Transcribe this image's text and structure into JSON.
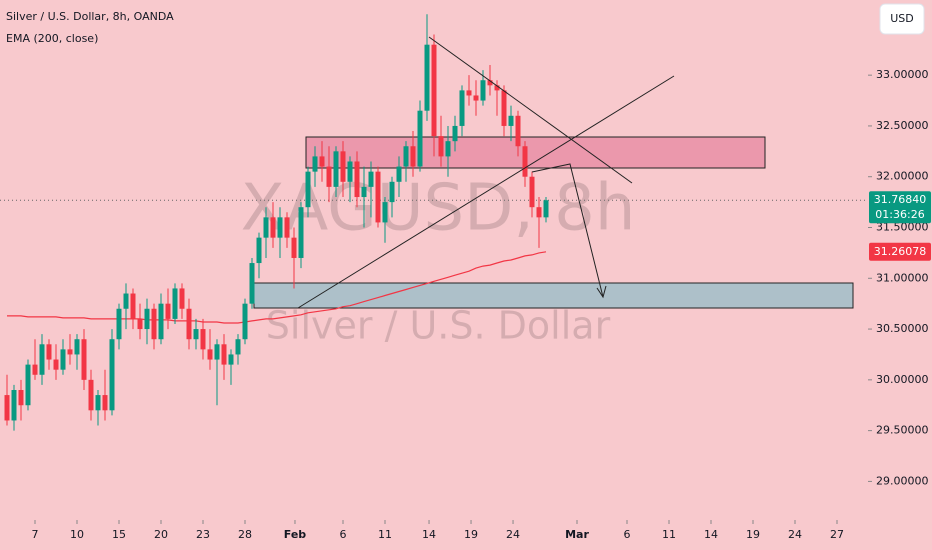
{
  "chart_data": {
    "type": "candlestick",
    "title": "Silver / U.S. Dollar, 8h, OANDA",
    "currency": "USD",
    "watermark": "XAGUSD, 8h",
    "watermark_subtitle": "Silver / U.S. Dollar",
    "up_color": "#089981",
    "down_color": "#f23645",
    "ohlc": [
      [
        29.85,
        30.05,
        29.55,
        29.6
      ],
      [
        29.6,
        29.95,
        29.5,
        29.9
      ],
      [
        29.9,
        30.0,
        29.6,
        29.75
      ],
      [
        29.75,
        30.2,
        29.7,
        30.15
      ],
      [
        30.15,
        30.4,
        30.0,
        30.05
      ],
      [
        30.05,
        30.45,
        29.95,
        30.35
      ],
      [
        30.35,
        30.4,
        30.1,
        30.2
      ],
      [
        30.2,
        30.35,
        30.0,
        30.1
      ],
      [
        30.1,
        30.4,
        30.05,
        30.3
      ],
      [
        30.3,
        30.45,
        30.15,
        30.25
      ],
      [
        30.25,
        30.45,
        30.1,
        30.4
      ],
      [
        30.4,
        30.5,
        29.9,
        30.0
      ],
      [
        30.0,
        30.1,
        29.6,
        29.7
      ],
      [
        29.7,
        29.9,
        29.55,
        29.85
      ],
      [
        29.85,
        30.1,
        29.6,
        29.7
      ],
      [
        29.7,
        30.5,
        29.65,
        30.4
      ],
      [
        30.4,
        30.75,
        30.3,
        30.7
      ],
      [
        30.7,
        30.95,
        30.5,
        30.85
      ],
      [
        30.85,
        30.9,
        30.5,
        30.6
      ],
      [
        30.6,
        30.75,
        30.4,
        30.5
      ],
      [
        30.5,
        30.8,
        30.35,
        30.7
      ],
      [
        30.7,
        30.75,
        30.3,
        30.4
      ],
      [
        30.4,
        30.85,
        30.35,
        30.75
      ],
      [
        30.75,
        30.9,
        30.5,
        30.6
      ],
      [
        30.6,
        30.95,
        30.55,
        30.9
      ],
      [
        30.9,
        30.95,
        30.6,
        30.7
      ],
      [
        30.7,
        30.8,
        30.3,
        30.4
      ],
      [
        30.4,
        30.6,
        30.3,
        30.5
      ],
      [
        30.5,
        30.6,
        30.2,
        30.3
      ],
      [
        30.3,
        30.5,
        30.1,
        30.2
      ],
      [
        30.2,
        30.4,
        29.75,
        30.35
      ],
      [
        30.35,
        30.45,
        30.0,
        30.15
      ],
      [
        30.15,
        30.3,
        29.95,
        30.25
      ],
      [
        30.25,
        30.45,
        30.15,
        30.4
      ],
      [
        30.4,
        30.8,
        30.35,
        30.75
      ],
      [
        30.75,
        31.2,
        30.7,
        31.15
      ],
      [
        31.15,
        31.45,
        31.0,
        31.4
      ],
      [
        31.4,
        31.7,
        31.2,
        31.6
      ],
      [
        31.6,
        31.75,
        31.3,
        31.4
      ],
      [
        31.4,
        31.7,
        31.2,
        31.6
      ],
      [
        31.6,
        31.65,
        31.3,
        31.4
      ],
      [
        31.4,
        31.5,
        30.9,
        31.2
      ],
      [
        31.2,
        31.75,
        31.1,
        31.7
      ],
      [
        31.7,
        32.1,
        31.6,
        32.05
      ],
      [
        32.05,
        32.3,
        31.9,
        32.2
      ],
      [
        32.2,
        32.35,
        31.95,
        32.1
      ],
      [
        32.1,
        32.3,
        31.75,
        31.9
      ],
      [
        31.9,
        32.3,
        31.8,
        32.25
      ],
      [
        32.25,
        32.35,
        31.8,
        31.95
      ],
      [
        31.95,
        32.2,
        31.75,
        32.15
      ],
      [
        32.15,
        32.25,
        31.7,
        31.8
      ],
      [
        31.8,
        32.1,
        31.5,
        31.9
      ],
      [
        31.9,
        32.15,
        31.6,
        32.05
      ],
      [
        32.05,
        32.1,
        31.5,
        31.55
      ],
      [
        31.55,
        31.8,
        31.35,
        31.75
      ],
      [
        31.75,
        32.0,
        31.6,
        31.95
      ],
      [
        31.95,
        32.2,
        31.8,
        32.1
      ],
      [
        32.1,
        32.35,
        31.95,
        32.3
      ],
      [
        32.3,
        32.45,
        32.0,
        32.1
      ],
      [
        32.1,
        32.75,
        32.05,
        32.65
      ],
      [
        32.65,
        33.6,
        32.55,
        33.3
      ],
      [
        33.3,
        33.4,
        32.2,
        32.4
      ],
      [
        32.4,
        32.6,
        32.1,
        32.2
      ],
      [
        32.2,
        32.5,
        32.0,
        32.35
      ],
      [
        32.35,
        32.6,
        32.25,
        32.5
      ],
      [
        32.5,
        32.9,
        32.4,
        32.85
      ],
      [
        32.85,
        33.0,
        32.7,
        32.8
      ],
      [
        32.8,
        32.95,
        32.6,
        32.75
      ],
      [
        32.75,
        33.05,
        32.7,
        32.95
      ],
      [
        32.95,
        33.1,
        32.8,
        32.9
      ],
      [
        32.9,
        32.95,
        32.6,
        32.85
      ],
      [
        32.85,
        32.9,
        32.4,
        32.5
      ],
      [
        32.5,
        32.7,
        32.35,
        32.6
      ],
      [
        32.6,
        32.65,
        32.2,
        32.3
      ],
      [
        32.3,
        32.35,
        31.9,
        32.0
      ],
      [
        32.0,
        32.05,
        31.6,
        31.7
      ],
      [
        31.7,
        31.8,
        31.3,
        31.6
      ],
      [
        31.6,
        31.8,
        31.55,
        31.7684
      ]
    ],
    "last_price": {
      "value": 31.7684,
      "label": "31.76840"
    },
    "countdown": "01:36:26",
    "ema": {
      "name": "EMA (200, close)",
      "color": "#f23645",
      "values": [
        30.63,
        30.63,
        30.63,
        30.62,
        30.62,
        30.62,
        30.62,
        30.62,
        30.61,
        30.61,
        30.61,
        30.61,
        30.6,
        30.6,
        30.6,
        30.6,
        30.6,
        30.6,
        30.6,
        30.6,
        30.59,
        30.59,
        30.59,
        30.59,
        30.58,
        30.58,
        30.58,
        30.58,
        30.57,
        30.57,
        30.57,
        30.56,
        30.56,
        30.56,
        30.57,
        30.58,
        30.59,
        30.6,
        30.6,
        30.61,
        30.62,
        30.63,
        30.64,
        30.66,
        30.67,
        30.68,
        30.69,
        30.7,
        30.72,
        30.73,
        30.75,
        30.77,
        30.79,
        30.81,
        30.83,
        30.85,
        30.87,
        30.89,
        30.91,
        30.93,
        30.95,
        30.97,
        30.99,
        31.01,
        31.03,
        31.05,
        31.07,
        31.1,
        31.12,
        31.13,
        31.15,
        31.17,
        31.18,
        31.2,
        31.22,
        31.23,
        31.25,
        31.26078
      ],
      "last_label": "31.26078"
    },
    "xlim": [
      -1,
      123
    ],
    "xticks": [
      {
        "value": 4,
        "label": "7"
      },
      {
        "value": 10,
        "label": "10"
      },
      {
        "value": 16,
        "label": "15"
      },
      {
        "value": 22,
        "label": "20"
      },
      {
        "value": 28,
        "label": "23"
      },
      {
        "value": 34,
        "label": "28"
      },
      {
        "value": 41.14,
        "label": "Feb"
      },
      {
        "value": 48,
        "label": "6"
      },
      {
        "value": 54,
        "label": "11"
      },
      {
        "value": 60.29,
        "label": "14"
      },
      {
        "value": 66.29,
        "label": "19"
      },
      {
        "value": 72.29,
        "label": "24"
      },
      {
        "value": 81.43,
        "label": "Mar"
      },
      {
        "value": 88.57,
        "label": "6"
      },
      {
        "value": 94.57,
        "label": "11"
      },
      {
        "value": 100.57,
        "label": "14"
      },
      {
        "value": 106.57,
        "label": "19"
      },
      {
        "value": 112.57,
        "label": "24"
      },
      {
        "value": 118.57,
        "label": "27"
      }
    ],
    "ylim": [
      28.62,
      33.74
    ],
    "yticks": [
      {
        "value": 29,
        "label": "29.00000"
      },
      {
        "value": 29.5,
        "label": "29.50000"
      },
      {
        "value": 30,
        "label": "30.00000"
      },
      {
        "value": 30.5,
        "label": "30.50000"
      },
      {
        "value": 31,
        "label": "31.00000"
      },
      {
        "value": 31.5,
        "label": "31.50000"
      },
      {
        "value": 32,
        "label": "32.00000"
      },
      {
        "value": 32.5,
        "label": "32.50000"
      },
      {
        "value": 33,
        "label": "33.00000"
      }
    ]
  }
}
